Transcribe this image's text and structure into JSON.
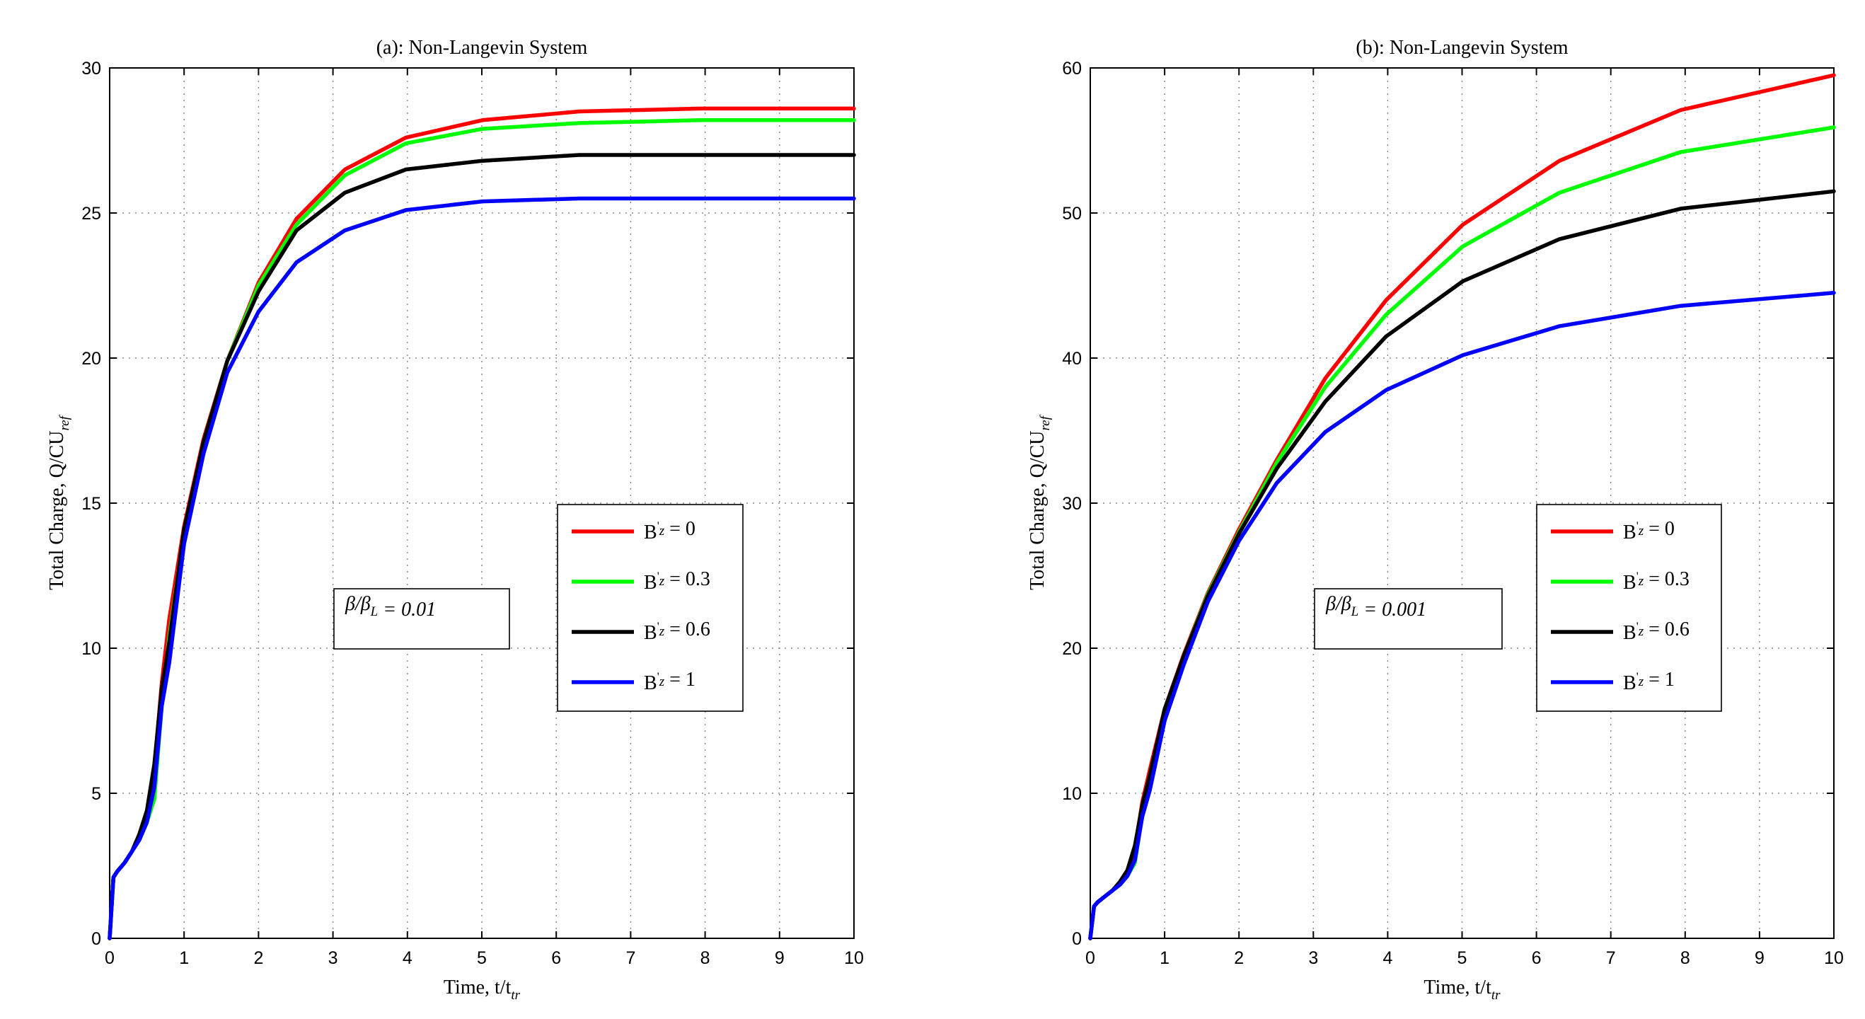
{
  "chart_data": [
    {
      "type": "line",
      "title": "(a): Non-Langevin System",
      "xlabel": "Time, t/t_tr",
      "ylabel": "Total Charge, Q/CU_ref",
      "xlim": [
        0,
        10
      ],
      "ylim": [
        0,
        30
      ],
      "xticks": [
        "0",
        "1",
        "2",
        "3",
        "4",
        "5",
        "6",
        "7",
        "8",
        "9",
        "10"
      ],
      "yticks": [
        "0",
        "5",
        "10",
        "15",
        "20",
        "25",
        "30"
      ],
      "grid": true,
      "legend_position": "center-right",
      "annotation": "β/β_L = 0.01",
      "x": [
        0,
        0.05,
        0.1,
        0.2,
        0.3,
        0.4,
        0.5,
        0.6,
        0.7,
        0.8,
        1.0,
        1.26,
        1.58,
        2.0,
        2.51,
        3.16,
        3.98,
        5.01,
        6.31,
        7.94,
        10
      ],
      "series": [
        {
          "name": "B'_z = 0",
          "color": "#ff0000",
          "values": [
            0,
            2.1,
            2.3,
            2.6,
            3.0,
            3.5,
            4.3,
            5.8,
            8.8,
            11.0,
            14.2,
            17.2,
            19.9,
            22.6,
            24.8,
            26.5,
            27.6,
            28.2,
            28.5,
            28.6,
            28.6
          ]
        },
        {
          "name": "B'_z = 0.3",
          "color": "#00ff00",
          "values": [
            0,
            2.1,
            2.3,
            2.6,
            3.0,
            3.4,
            4.0,
            4.8,
            8.0,
            10.4,
            14.0,
            17.1,
            19.9,
            22.5,
            24.6,
            26.3,
            27.4,
            27.9,
            28.1,
            28.2,
            28.2
          ]
        },
        {
          "name": "B'_z = 0.6",
          "color": "#000000",
          "values": [
            0,
            2.1,
            2.3,
            2.6,
            3.0,
            3.6,
            4.4,
            6.0,
            8.6,
            10.2,
            14.1,
            17.1,
            19.9,
            22.3,
            24.4,
            25.7,
            26.5,
            26.8,
            27.0,
            27.0,
            27.0
          ]
        },
        {
          "name": "B'_z = 1",
          "color": "#0000ff",
          "values": [
            0,
            2.1,
            2.3,
            2.6,
            3.0,
            3.4,
            4.0,
            5.2,
            8.0,
            9.5,
            13.6,
            16.7,
            19.5,
            21.6,
            23.3,
            24.4,
            25.1,
            25.4,
            25.5,
            25.5,
            25.5
          ]
        }
      ]
    },
    {
      "type": "line",
      "title": "(b): Non-Langevin System",
      "xlabel": "Time, t/t_tr",
      "ylabel": "Total Charge, Q/CU_ref",
      "xlim": [
        0,
        10
      ],
      "ylim": [
        0,
        60
      ],
      "xticks": [
        "0",
        "1",
        "2",
        "3",
        "4",
        "5",
        "6",
        "7",
        "8",
        "9",
        "10"
      ],
      "yticks": [
        "0",
        "10",
        "20",
        "30",
        "40",
        "50",
        "60"
      ],
      "grid": true,
      "legend_position": "center-right",
      "annotation": "β/β_L = 0.001",
      "x": [
        0,
        0.05,
        0.1,
        0.2,
        0.3,
        0.4,
        0.5,
        0.6,
        0.7,
        0.8,
        1.0,
        1.26,
        1.58,
        2.0,
        2.51,
        3.16,
        3.98,
        5.01,
        6.31,
        7.94,
        10
      ],
      "series": [
        {
          "name": "B'_z = 0",
          "color": "#ff0000",
          "values": [
            0,
            2.2,
            2.5,
            2.9,
            3.3,
            3.8,
            4.6,
            6.2,
            9.4,
            11.6,
            15.8,
            19.6,
            23.8,
            28.2,
            33.0,
            38.6,
            44.0,
            49.2,
            53.6,
            57.1,
            59.5
          ]
        },
        {
          "name": "B'_z = 0.3",
          "color": "#00ff00",
          "values": [
            0,
            2.2,
            2.5,
            2.9,
            3.3,
            3.7,
            4.3,
            5.2,
            8.6,
            11.0,
            15.6,
            19.5,
            23.7,
            28.0,
            32.8,
            38.0,
            43.0,
            47.7,
            51.4,
            54.2,
            55.9
          ]
        },
        {
          "name": "B'_z = 0.6",
          "color": "#000000",
          "values": [
            0,
            2.2,
            2.5,
            2.9,
            3.3,
            3.9,
            4.7,
            6.4,
            9.2,
            11.2,
            15.8,
            19.5,
            23.6,
            27.9,
            32.4,
            37.0,
            41.5,
            45.3,
            48.2,
            50.3,
            51.5
          ]
        },
        {
          "name": "B'_z = 1",
          "color": "#0000ff",
          "values": [
            0,
            2.2,
            2.5,
            2.9,
            3.3,
            3.7,
            4.3,
            5.4,
            8.4,
            10.2,
            15.0,
            18.9,
            23.2,
            27.4,
            31.4,
            34.9,
            37.8,
            40.2,
            42.2,
            43.6,
            44.5
          ]
        }
      ]
    }
  ]
}
